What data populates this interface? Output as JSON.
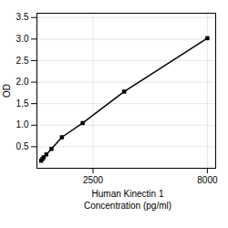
{
  "chart_data": {
    "type": "line",
    "x": [
      0,
      62.5,
      125,
      250,
      500,
      1000,
      2000,
      4000,
      8000
    ],
    "values": [
      0.175,
      0.215,
      0.255,
      0.32,
      0.45,
      0.72,
      1.05,
      1.78,
      3.02
    ],
    "xlabel": "Human Kinectin 1\nConcentration (pg/ml)",
    "ylabel": "OD",
    "xlim": [
      -200,
      8400
    ],
    "ylim": [
      0,
      3.6
    ],
    "xticks": [
      2500,
      8000
    ],
    "yticks": [
      0.5,
      {
        "value": 1.0,
        "label": "1.0"
      },
      1.5,
      {
        "value": 2.0,
        "label": "2.0"
      },
      2.5,
      {
        "value": 3.0,
        "label": "3.0"
      },
      3.5
    ],
    "grid": true,
    "marker": "square"
  }
}
